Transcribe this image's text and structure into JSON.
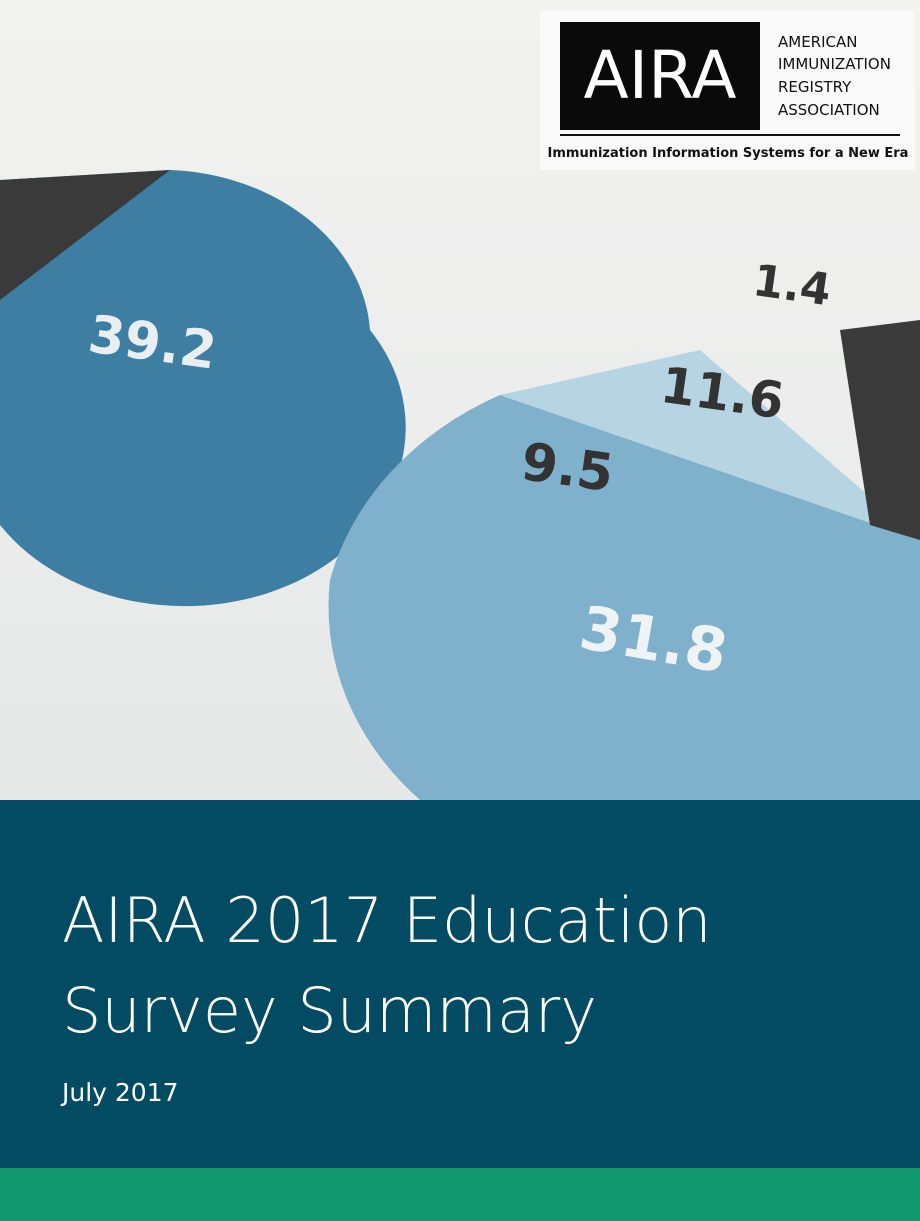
{
  "logo": {
    "mark": "AIRA",
    "name_lines": [
      "AMERICAN",
      "IMMUNIZATION",
      "REGISTRY",
      "ASSOCIATION"
    ],
    "tagline": "Immunization Information Systems for a New Era"
  },
  "photo_labels": [
    "39.2",
    "1.4",
    "11.6",
    "9.5",
    "31.8"
  ],
  "title": {
    "lines": [
      "AIRA 2017 Education",
      "Survey Summary"
    ],
    "date": "July 2017"
  }
}
